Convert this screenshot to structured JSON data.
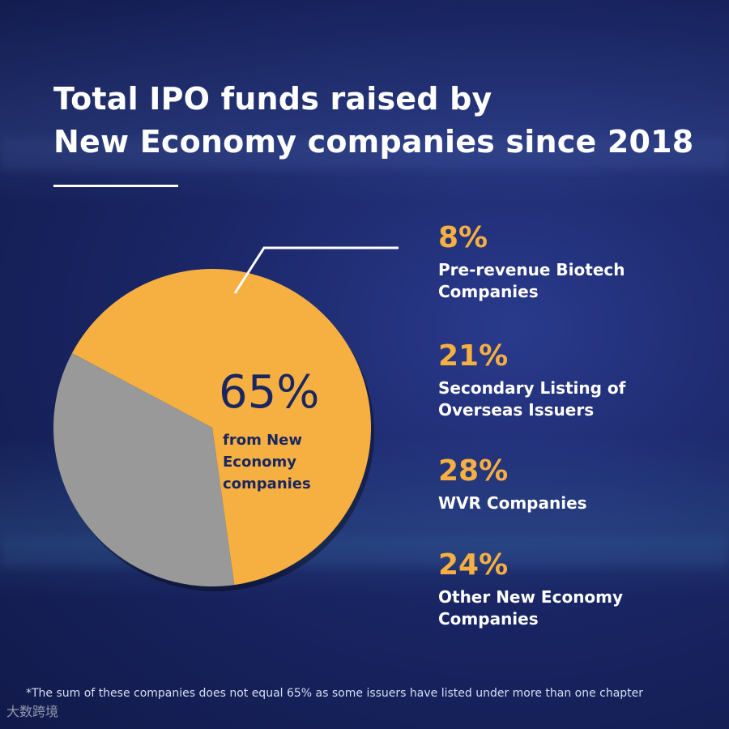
{
  "title": {
    "line1": "Total IPO funds raised by",
    "line2": "New Economy companies since 2018"
  },
  "chart_data": {
    "type": "pie",
    "slices": [
      {
        "label": "New Economy companies",
        "value": 65,
        "color": "#f6b042"
      },
      {
        "label": "",
        "value": 35,
        "color": "#999999"
      }
    ],
    "center_value": "65%",
    "center_label": "from New Economy companies",
    "breakdown": [
      {
        "value": "8%",
        "label": "Pre-revenue Biotech Companies"
      },
      {
        "value": "21%",
        "label": "Secondary Listing of Overseas Issuers"
      },
      {
        "value": "28%",
        "label": "WVR Companies"
      },
      {
        "value": "24%",
        "label": "Other New Economy Companies"
      }
    ]
  },
  "footnote": "*The sum of these companies does not equal 65% as some issuers have listed under more than one chapter",
  "watermark": "大数跨境"
}
